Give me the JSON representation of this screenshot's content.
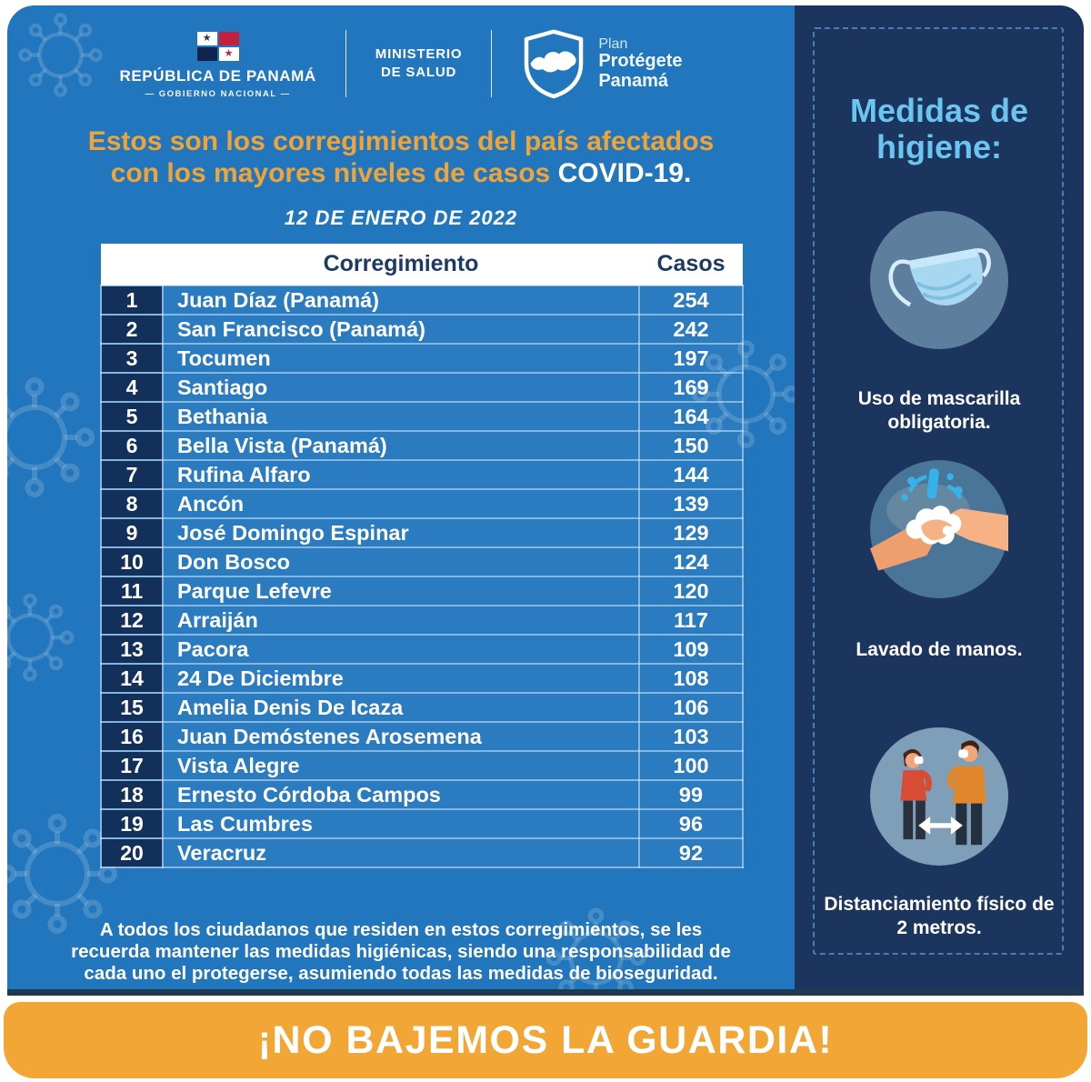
{
  "header": {
    "gov": {
      "title": "REPÚBLICA DE PANAMÁ",
      "subtitle": "— GOBIERNO NACIONAL —"
    },
    "ministry": {
      "line1": "MINISTERIO",
      "line2": "DE SALUD"
    },
    "plan": {
      "line1": "Plan",
      "line2": "Protégete",
      "line3": "Panamá"
    }
  },
  "intro": {
    "title_line1": "Estos son los corregimientos del país afectados",
    "title_line2": "con los mayores niveles de casos",
    "title_highlight": "COVID-19.",
    "date": "12 DE ENERO DE 2022"
  },
  "table": {
    "headers": {
      "corregimiento": "Corregimiento",
      "casos": "Casos"
    },
    "rows": [
      {
        "rank": "1",
        "name": "Juan Díaz (Panamá)",
        "cases": "254"
      },
      {
        "rank": "2",
        "name": "San Francisco (Panamá)",
        "cases": "242"
      },
      {
        "rank": "3",
        "name": "Tocumen",
        "cases": "197"
      },
      {
        "rank": "4",
        "name": "Santiago",
        "cases": "169"
      },
      {
        "rank": "5",
        "name": "Bethania",
        "cases": "164"
      },
      {
        "rank": "6",
        "name": "Bella Vista (Panamá)",
        "cases": "150"
      },
      {
        "rank": "7",
        "name": "Rufina Alfaro",
        "cases": "144"
      },
      {
        "rank": "8",
        "name": "Ancón",
        "cases": "139"
      },
      {
        "rank": "9",
        "name": "José Domingo Espinar",
        "cases": "129"
      },
      {
        "rank": "10",
        "name": "Don Bosco",
        "cases": "124"
      },
      {
        "rank": "11",
        "name": "Parque Lefevre",
        "cases": "120"
      },
      {
        "rank": "12",
        "name": "Arraiján",
        "cases": "117"
      },
      {
        "rank": "13",
        "name": "Pacora",
        "cases": "109"
      },
      {
        "rank": "14",
        "name": "24 De Diciembre",
        "cases": "108"
      },
      {
        "rank": "15",
        "name": "Amelia Denis De Icaza",
        "cases": "106"
      },
      {
        "rank": "16",
        "name": "Juan Demóstenes Arosemena",
        "cases": "103"
      },
      {
        "rank": "17",
        "name": "Vista Alegre",
        "cases": "100"
      },
      {
        "rank": "18",
        "name": "Ernesto Córdoba Campos",
        "cases": "99"
      },
      {
        "rank": "19",
        "name": "Las Cumbres",
        "cases": "96"
      },
      {
        "rank": "20",
        "name": "Veracruz",
        "cases": "92"
      }
    ]
  },
  "note": "A todos los ciudadanos que residen en estos corregimientos, se les\nrecuerda mantener las medidas higiénicas, siendo una responsabilidad de\ncada uno el protegerse, asumiendo todas  las medidas de bioseguridad.",
  "sidebar": {
    "title": "Medidas de higiene:",
    "items": [
      {
        "icon": "mask-icon",
        "label": "Uso de mascarilla obligatoria."
      },
      {
        "icon": "handwash-icon",
        "label": "Lavado de manos."
      },
      {
        "icon": "distancing-icon",
        "label": "Distanciamiento físico de 2 metros."
      }
    ]
  },
  "banner": "¡NO BAJEMOS LA GUARDIA!",
  "chart_data": {
    "type": "table",
    "title": "Estos son los corregimientos del país afectados con los mayores niveles de casos COVID-19.",
    "date": "12 DE ENERO DE 2022",
    "columns": [
      "Corregimiento",
      "Casos"
    ],
    "categories": [
      "Juan Díaz (Panamá)",
      "San Francisco (Panamá)",
      "Tocumen",
      "Santiago",
      "Bethania",
      "Bella Vista (Panamá)",
      "Rufina Alfaro",
      "Ancón",
      "José Domingo Espinar",
      "Don Bosco",
      "Parque Lefevre",
      "Arraiján",
      "Pacora",
      "24 De Diciembre",
      "Amelia Denis De Icaza",
      "Juan Demóstenes Arosemena",
      "Vista Alegre",
      "Ernesto Córdoba Campos",
      "Las Cumbres",
      "Veracruz"
    ],
    "values": [
      254,
      242,
      197,
      169,
      164,
      150,
      144,
      139,
      129,
      124,
      120,
      117,
      109,
      108,
      106,
      103,
      100,
      99,
      96,
      92
    ]
  },
  "colors": {
    "primary_blue": "#2276bd",
    "navy": "#1b355f",
    "rank_navy": "#13305a",
    "orange": "#f2a636",
    "title_orange": "#f0a437",
    "light_blue": "#6bc5f1"
  }
}
